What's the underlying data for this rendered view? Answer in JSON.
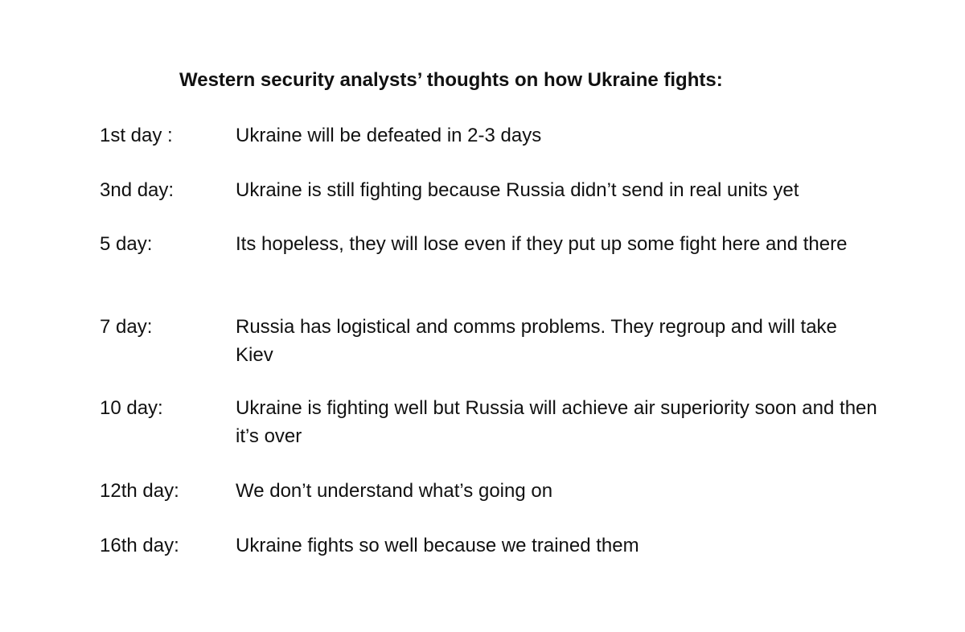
{
  "document": {
    "title": "Western security analysts’ thoughts on how Ukraine fights:",
    "entries": [
      {
        "day": "1st day :",
        "text": "Ukraine will be defeated in 2-3 days"
      },
      {
        "day": "3nd day:",
        "text": "Ukraine is still fighting because Russia didn’t send in real units yet"
      },
      {
        "day": "5 day:",
        "text": "Its hopeless, they will lose even if they put up some fight here and there"
      },
      {
        "day": "7 day:",
        "text": "Russia has logistical and comms problems. They regroup and will take Kiev"
      },
      {
        "day": "10 day:",
        "text": "Ukraine is fighting well but Russia will achieve air superiority soon and then it’s over"
      },
      {
        "day": "12th day:",
        "text": "We don’t understand what’s going on"
      },
      {
        "day": "16th day:",
        "text": "Ukraine fights so well because we trained them"
      }
    ]
  }
}
